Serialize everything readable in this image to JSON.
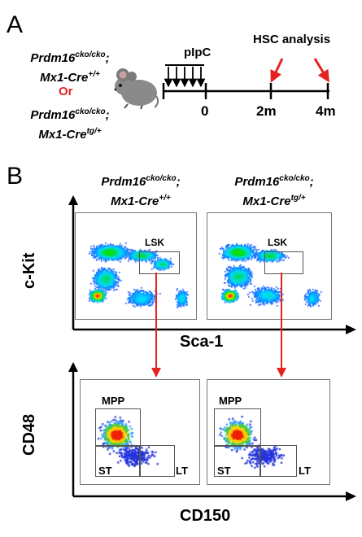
{
  "panel_a": {
    "letter": "A",
    "genotype_top_line1": "Prdm16",
    "genotype_top_line1_sup": "cko/cko",
    "genotype_top_line1_tail": ";",
    "genotype_top_line2": "Mx1-Cre",
    "genotype_top_line2_sup": "+/+",
    "or_label": "Or",
    "genotype_bottom_line1": "Prdm16",
    "genotype_bottom_line1_sup": "cko/cko",
    "genotype_bottom_line1_tail": ";",
    "genotype_bottom_line2": "Mx1-Cre",
    "genotype_bottom_line2_sup": "tg/+",
    "treatment_label": "pIpC",
    "analysis_label": "HSC analysis",
    "timepoints": [
      "0",
      "2m",
      "4m"
    ],
    "injection_count": 5,
    "colors": {
      "arrow_red": "#e4231f",
      "or_red": "#e4231f"
    }
  },
  "panel_b": {
    "letter": "B",
    "col1_line1": "Prdm16",
    "col1_line1_sup": "cko/cko",
    "col1_line1_tail": ";",
    "col1_line2": "Mx1-Cre",
    "col1_line2_sup": "+/+",
    "col2_line1": "Prdm16",
    "col2_line1_sup": "cko/cko",
    "col2_line1_tail": ";",
    "col2_line2": "Mx1-Cre",
    "col2_line2_sup": "tg/+",
    "top_y_axis": "c-Kit",
    "top_x_axis": "Sca-1",
    "top_gate": "LSK",
    "bottom_y_axis": "CD48",
    "bottom_x_axis": "CD150",
    "bottom_gates": [
      "MPP",
      "ST",
      "LT"
    ]
  }
}
